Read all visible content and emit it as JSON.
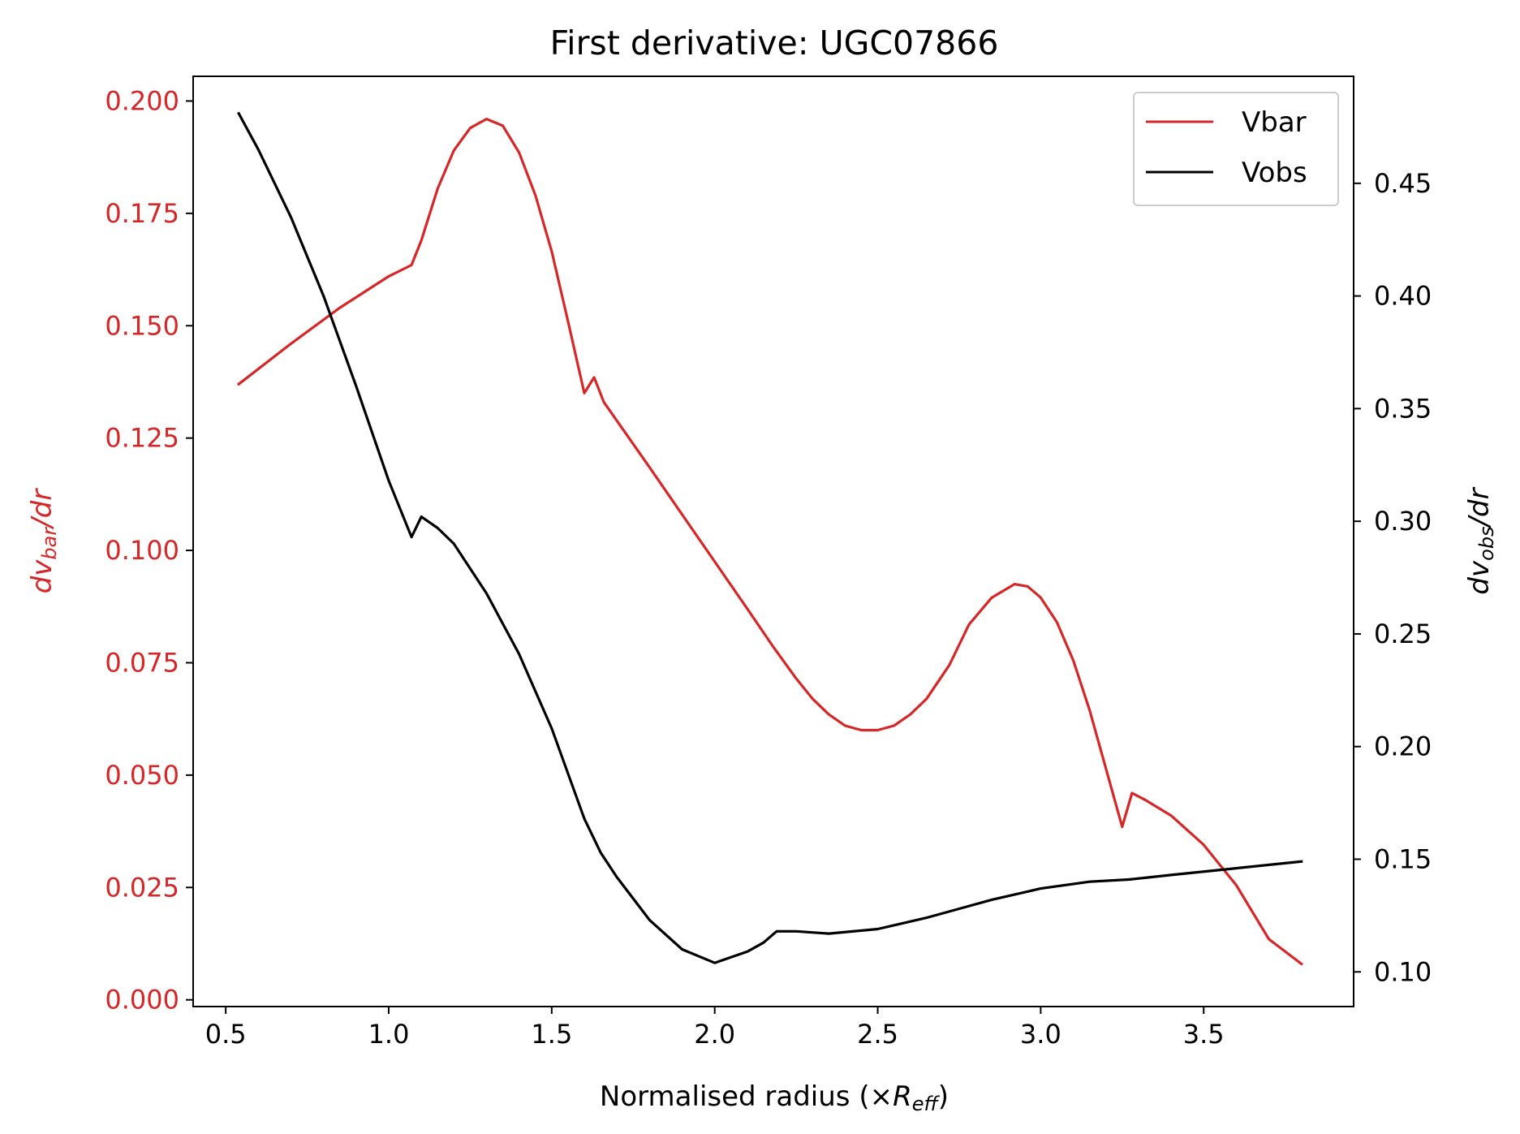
{
  "chart_data": {
    "type": "line",
    "title": "First derivative: UGC07866",
    "xlabel": {
      "main": "Normalised radius (×",
      "italic": "R",
      "sub": "eff",
      "close": ")"
    },
    "ylabel_left": {
      "italic": "dv",
      "sub": "bar",
      "tail": "/dr"
    },
    "ylabel_right": {
      "italic": "dv",
      "sub": "obs",
      "tail": "/dr"
    },
    "xlim": [
      0.4,
      3.96
    ],
    "ylim_left": [
      -0.0015,
      0.2055
    ],
    "ylim_right": [
      0.0846,
      0.4975
    ],
    "x_ticks": [
      "0.5",
      "1.0",
      "1.5",
      "2.0",
      "2.5",
      "3.0",
      "3.5"
    ],
    "y_ticks_left": [
      "0.000",
      "0.025",
      "0.050",
      "0.075",
      "0.100",
      "0.125",
      "0.150",
      "0.175",
      "0.200"
    ],
    "y_ticks_right": [
      "0.10",
      "0.15",
      "0.20",
      "0.25",
      "0.30",
      "0.35",
      "0.40",
      "0.45"
    ],
    "legend_position": "upper right",
    "colors": {
      "vbar": "#d62728",
      "vobs": "#000000",
      "left_axis": "#d62728",
      "right_axis": "#000000"
    },
    "series": [
      {
        "name": "Vbar",
        "axis": "left",
        "color": "#d62728",
        "x": [
          0.54,
          0.7,
          0.85,
          1.0,
          1.07,
          1.1,
          1.15,
          1.2,
          1.25,
          1.3,
          1.35,
          1.4,
          1.45,
          1.5,
          1.55,
          1.6,
          1.63,
          1.66,
          1.8,
          1.9,
          2.0,
          2.1,
          2.18,
          2.25,
          2.3,
          2.35,
          2.4,
          2.45,
          2.5,
          2.55,
          2.6,
          2.65,
          2.72,
          2.78,
          2.85,
          2.92,
          2.96,
          3.0,
          3.05,
          3.1,
          3.15,
          3.2,
          3.25,
          3.28,
          3.32,
          3.4,
          3.5,
          3.6,
          3.7,
          3.8
        ],
        "y": [
          0.137,
          0.146,
          0.154,
          0.161,
          0.1635,
          0.169,
          0.1805,
          0.189,
          0.194,
          0.196,
          0.1945,
          0.1885,
          0.179,
          0.1665,
          0.151,
          0.135,
          0.1385,
          0.133,
          0.1185,
          0.108,
          0.0975,
          0.087,
          0.0785,
          0.0715,
          0.067,
          0.0635,
          0.061,
          0.06,
          0.06,
          0.061,
          0.0635,
          0.067,
          0.0745,
          0.0835,
          0.0895,
          0.0925,
          0.092,
          0.0895,
          0.084,
          0.0755,
          0.0645,
          0.0515,
          0.0385,
          0.046,
          0.0445,
          0.041,
          0.0345,
          0.0255,
          0.0135,
          0.008
        ]
      },
      {
        "name": "Vobs",
        "axis": "right",
        "color": "#000000",
        "x": [
          0.54,
          0.6,
          0.7,
          0.8,
          0.9,
          1.0,
          1.07,
          1.1,
          1.15,
          1.2,
          1.3,
          1.4,
          1.5,
          1.6,
          1.65,
          1.7,
          1.8,
          1.9,
          2.0,
          2.1,
          2.15,
          2.19,
          2.25,
          2.35,
          2.5,
          2.65,
          2.75,
          2.85,
          3.0,
          3.15,
          3.27,
          3.4,
          3.6,
          3.8
        ],
        "y": [
          0.481,
          0.465,
          0.435,
          0.4,
          0.36,
          0.318,
          0.293,
          0.302,
          0.297,
          0.29,
          0.268,
          0.241,
          0.208,
          0.168,
          0.153,
          0.142,
          0.123,
          0.11,
          0.104,
          0.109,
          0.113,
          0.118,
          0.118,
          0.117,
          0.119,
          0.124,
          0.128,
          0.132,
          0.137,
          0.14,
          0.141,
          0.143,
          0.146,
          0.149
        ]
      }
    ]
  }
}
